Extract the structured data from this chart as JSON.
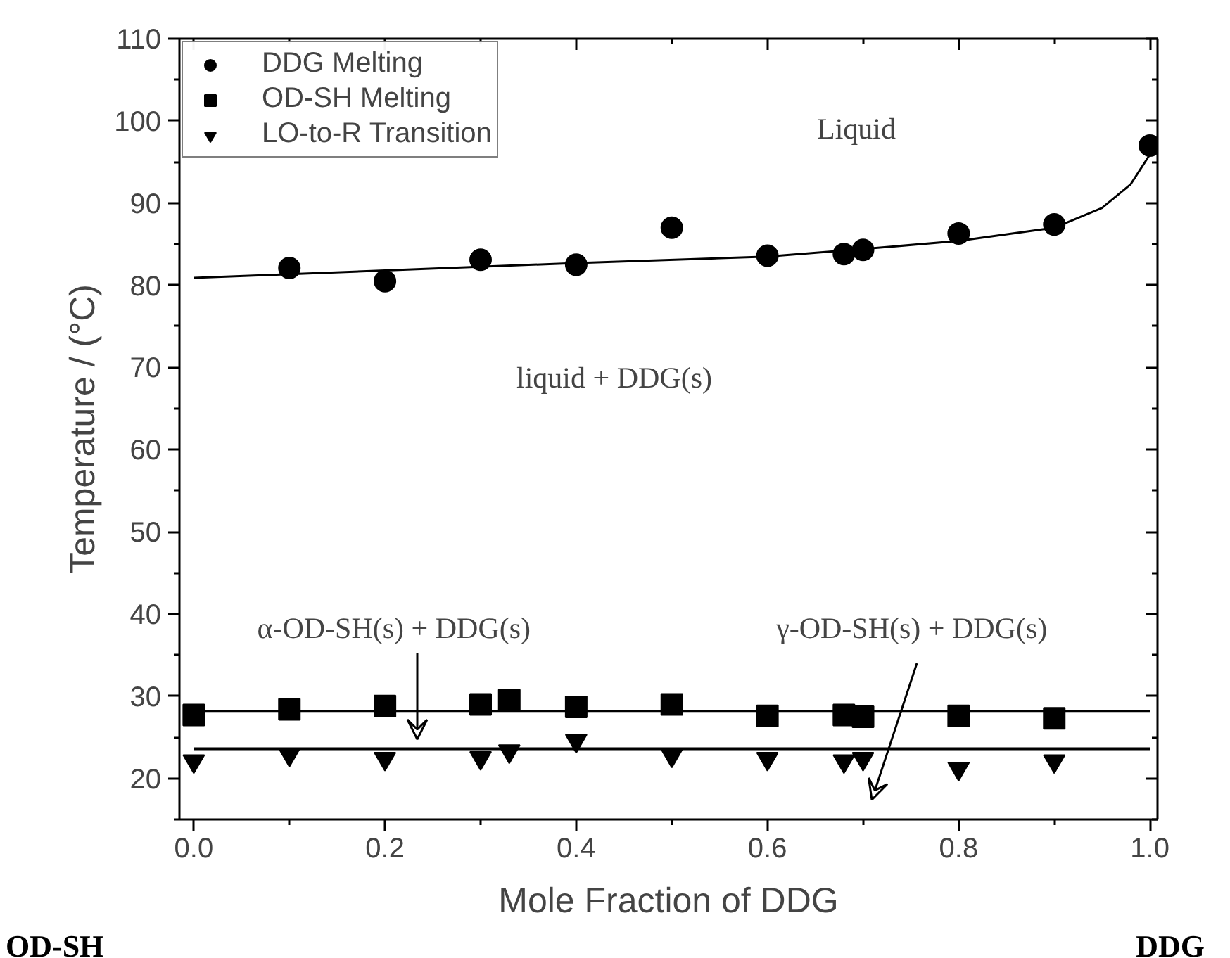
{
  "chart_data": {
    "type": "scatter",
    "xlabel": "Mole Fraction of DDG",
    "ylabel": "Temperature / (°C)",
    "xlim": [
      -0.015,
      1.008
    ],
    "ylim": [
      15,
      110
    ],
    "xticks": [
      {
        "value": 0,
        "label": "0.0"
      },
      0.2,
      0.4,
      0.6,
      0.8,
      {
        "value": 1,
        "label": "1.0"
      }
    ],
    "yticks": [
      20,
      30,
      40,
      50,
      60,
      70,
      80,
      90,
      100,
      110
    ],
    "grid": false,
    "legend": "top left",
    "series": [
      {
        "name": "DDG Melting",
        "marker": "circle",
        "color": "#000000",
        "x": [
          0.1,
          0.2,
          0.3,
          0.4,
          0.5,
          0.6,
          0.68,
          0.7,
          0.8,
          0.9,
          1.0
        ],
        "values": [
          82.1,
          80.5,
          83.1,
          82.5,
          87.0,
          83.6,
          83.8,
          84.3,
          86.3,
          87.4,
          97.0
        ]
      },
      {
        "name": "OD-SH Melting",
        "marker": "square",
        "color": "#000000",
        "x": [
          0,
          0.1,
          0.2,
          0.3,
          0.33,
          0.4,
          0.5,
          0.6,
          0.68,
          0.7,
          0.8,
          0.9
        ],
        "values": [
          27.7,
          28.4,
          28.8,
          29.0,
          29.5,
          28.7,
          29.0,
          27.6,
          27.7,
          27.5,
          27.6,
          27.3
        ]
      },
      {
        "name": "LO-to-R Transition",
        "marker": "triangle",
        "color": "#000000",
        "x": [
          0,
          0.1,
          0.2,
          0.3,
          0.33,
          0.4,
          0.5,
          0.6,
          0.68,
          0.7,
          0.8,
          0.9
        ],
        "values": [
          22.1,
          22.9,
          22.4,
          22.5,
          23.3,
          24.6,
          22.8,
          22.4,
          22.1,
          22.4,
          21.2,
          22.1
        ]
      },
      {
        "type": "line",
        "color": "#000000",
        "x": [
          0,
          0.2,
          0.4,
          0.6,
          0.7,
          0.8,
          0.9,
          0.95,
          0.98,
          1.0
        ],
        "values": [
          80.9,
          81.8,
          82.7,
          83.5,
          84.4,
          85.4,
          87.0,
          89.4,
          92.3,
          95.9
        ]
      },
      {
        "type": "line",
        "color": "#000000",
        "x": [
          0,
          1.0
        ],
        "values": [
          28.2,
          28.2
        ]
      },
      {
        "type": "line",
        "color": "#000000",
        "x": [
          0,
          1.0
        ],
        "values": [
          23.6,
          23.6
        ]
      }
    ],
    "annotations": [
      "Liquid",
      "liquid + DDG(s)",
      "α-OD-SH(s)  + DDG(s)",
      "γ-OD-SH(s)  + DDG(s)",
      "OD-SH",
      "DDG"
    ]
  }
}
